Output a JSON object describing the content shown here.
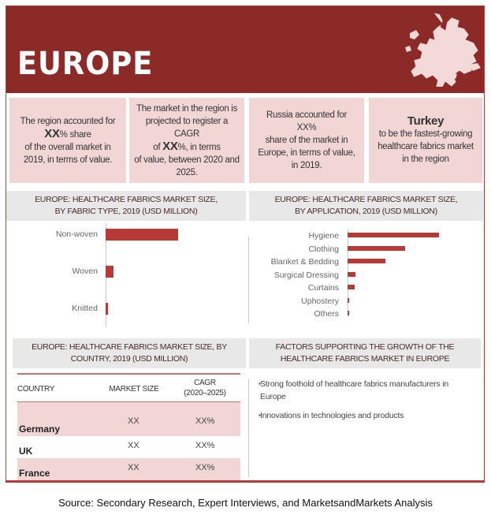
{
  "header": {
    "title": "EUROPE",
    "map_icon": "europe-map-icon"
  },
  "cards": [
    {
      "pre": "The region accounted for",
      "big": "XX",
      "mid": "% share",
      "post": "of the overall market in 2019, in terms of value."
    },
    {
      "pre": "The market in the region is projected to register a CAGR",
      "of": "of",
      "big": "XX",
      "mid": "%, in terms",
      "post": "of value, between 2020 and 2025."
    },
    {
      "pre": "Russia accounted for",
      "big": "XX%",
      "post": "share of the market in Europe, in terms of value, in 2019."
    },
    {
      "big": "Turkey",
      "post": "to be the fastest-growing healthcare fabrics market in the region"
    }
  ],
  "sections": {
    "fabric_title_1": "EUROPE: HEALTHCARE FABRICS MARKET SIZE,",
    "fabric_title_2": "BY FABRIC TYPE, 2019 (USD MILLION)",
    "app_title_1": "EUROPE: HEALTHCARE FABRICS MARKET SIZE,",
    "app_title_2": "BY APPLICATION, 2019 (USD MILLION)",
    "country_title_1": "EUROPE: HEALTHCARE FABRICS MARKET SIZE, BY",
    "country_title_2": "COUNTRY, 2019 (USD MILLION)",
    "factors_title_1": "FACTORS SUPPORTING THE GROWTH OF THE",
    "factors_title_2": "HEALTHCARE FABRICS MARKET IN EUROPE"
  },
  "chart_data": [
    {
      "type": "bar",
      "orientation": "horizontal",
      "title": "EUROPE: HEALTHCARE FABRICS MARKET SIZE, BY FABRIC TYPE, 2019 (USD MILLION)",
      "categories": [
        "Non-woven",
        "Woven",
        "Knitted"
      ],
      "values": [
        100,
        11,
        3
      ],
      "value_scale": "relative",
      "color": "#b83a36"
    },
    {
      "type": "bar",
      "orientation": "horizontal",
      "title": "EUROPE: HEALTHCARE FABRICS MARKET SIZE, BY APPLICATION, 2019 (USD MILLION)",
      "categories": [
        "Hygiene",
        "Clothing",
        "Blanket & Bedding",
        "Surgical Dressing",
        "Curtains",
        "Uphostery",
        "Others"
      ],
      "values": [
        100,
        63,
        41,
        9,
        8,
        2,
        2
      ],
      "value_scale": "relative",
      "color": "#b83a36"
    }
  ],
  "table": {
    "headers": [
      "COUNTRY",
      "MARKET SIZE",
      "CAGR",
      "(2020–2025)"
    ],
    "rows": [
      {
        "country": "Germany",
        "size": "XX",
        "cagr": "XX%"
      },
      {
        "country": "UK",
        "size": "XX",
        "cagr": "XX%"
      },
      {
        "country": "France",
        "size": "XX",
        "cagr": "XX%"
      }
    ]
  },
  "factors": [
    "Strong foothold of healthcare fabrics manufacturers in Europe",
    "Innovations in technologies and products"
  ],
  "source": "Source: Secondary Research, Expert Interviews, and MarketsandMarkets Analysis",
  "colors": {
    "header": "#8c2a27",
    "accent": "#b83a36",
    "card": "#f2d6d6",
    "section": "#e8e8e8"
  }
}
